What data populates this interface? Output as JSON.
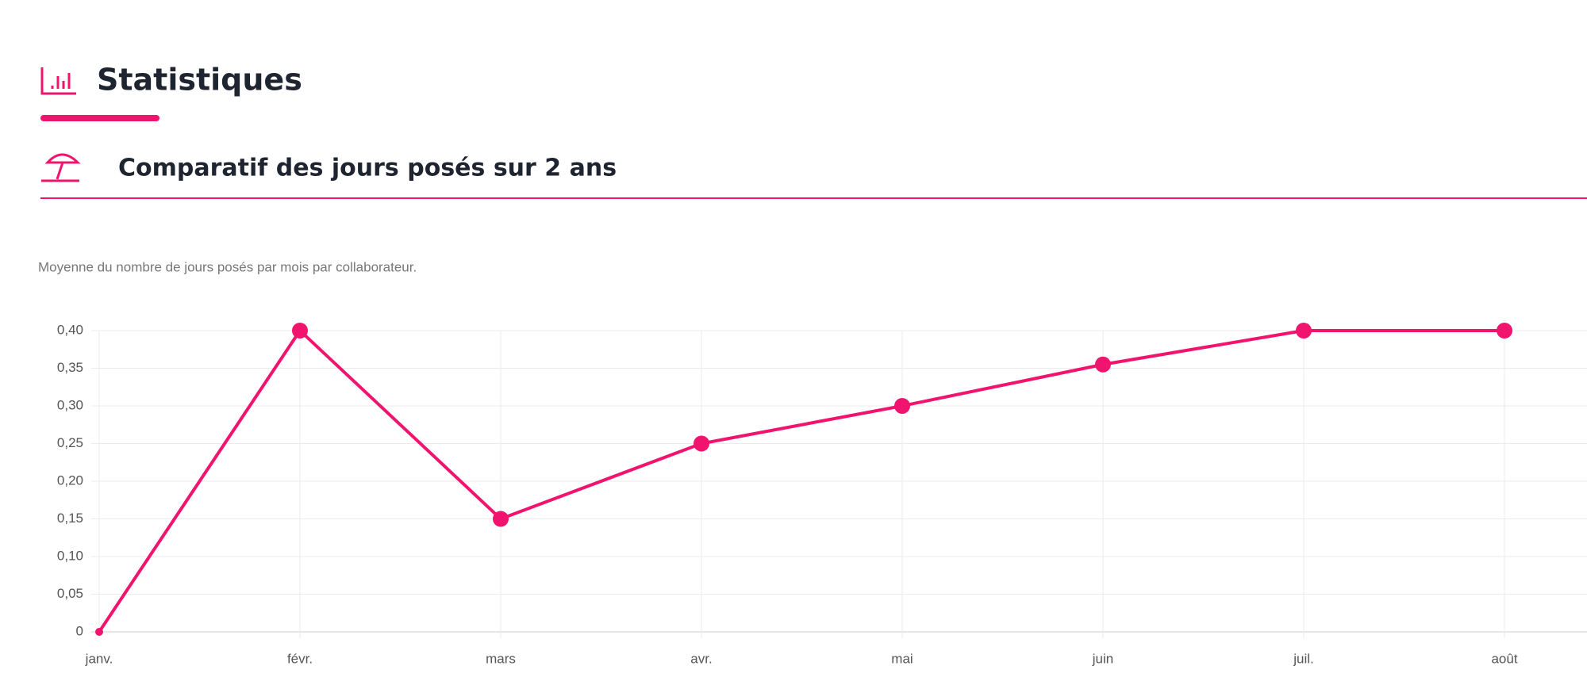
{
  "header": {
    "title": "Statistiques"
  },
  "section": {
    "title": "Comparatif des jours posés sur 2 ans"
  },
  "chart_data": {
    "type": "line",
    "subtitle": "Moyenne du nombre de jours posés par mois par collaborateur.",
    "categories": [
      "janv.",
      "févr.",
      "mars",
      "avr.",
      "mai",
      "juin",
      "juil.",
      "août"
    ],
    "values": [
      0,
      0.4,
      0.15,
      0.25,
      0.3,
      0.355,
      0.4,
      0.4
    ],
    "color": "#f0146e",
    "ylim": [
      0,
      0.4
    ],
    "yticks": [
      0,
      {
        "value": 0.05,
        "label": "0,05"
      },
      {
        "value": 0.1,
        "label": "0,10"
      },
      {
        "value": 0.15,
        "label": "0,15"
      },
      {
        "value": 0.2,
        "label": "0,20"
      },
      {
        "value": 0.25,
        "label": "0,25"
      },
      {
        "value": 0.3,
        "label": "0,30"
      },
      {
        "value": 0.35,
        "label": "0,35"
      },
      {
        "value": 0.4,
        "label": "0,40"
      }
    ],
    "grid": true
  }
}
